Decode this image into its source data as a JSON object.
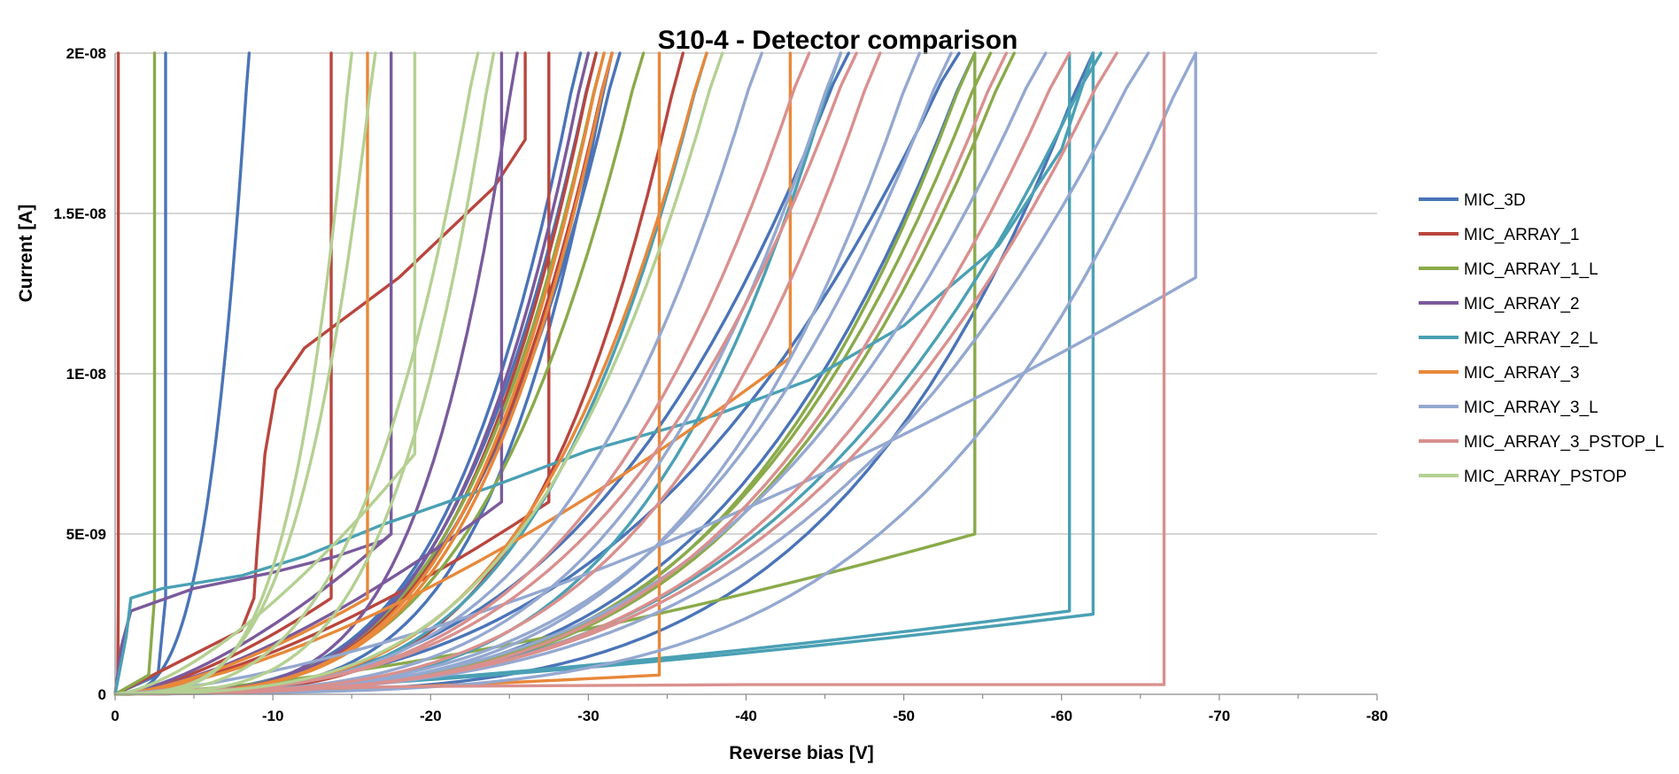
{
  "chart_data": {
    "type": "line",
    "title": "S10-4 - Detector comparison",
    "xlabel": "Reverse bias [V]",
    "ylabel": "Current [A]",
    "xlim": [
      0,
      -80
    ],
    "ylim": [
      0,
      2e-08
    ],
    "x_ticks": [
      "0",
      "-10",
      "-20",
      "-30",
      "-40",
      "-50",
      "-60",
      "-70",
      "-80"
    ],
    "y_ticks": [
      "0",
      "5E-09",
      "1E-08",
      "1.5E-08",
      "2E-08"
    ],
    "grid": "horizontal",
    "legend_position": "right",
    "series": [
      {
        "name": "MIC_3D",
        "color": "#4a74b8",
        "curves": [
          {
            "style": "wall",
            "v": 3.2
          },
          {
            "style": "knee",
            "v": 8.5,
            "k": 1.7
          },
          {
            "style": "knee",
            "v": 29.5,
            "k": 2.0
          },
          {
            "style": "knee",
            "v": 30.5,
            "k": 1.9
          },
          {
            "style": "knee",
            "v": 31.5,
            "k": 2.3
          },
          {
            "style": "knee",
            "v": 32.0,
            "k": 1.8
          },
          {
            "style": "knee",
            "v": 54.5,
            "k": 1.9
          },
          {
            "style": "knee",
            "v": 62.0,
            "k": 2.2
          },
          {
            "style": "knee",
            "v": 46.5,
            "k": 1.5
          },
          {
            "style": "knee",
            "v": 53.5,
            "k": 1.4
          }
        ]
      },
      {
        "name": "MIC_ARRAY_1",
        "color": "#b9463e",
        "curves": [
          {
            "style": "wall",
            "v": 0.2
          },
          {
            "style": "step",
            "v": 13.7,
            "y": 3e-09
          },
          {
            "style": "step",
            "v": 27.5,
            "y": 6e-09
          },
          {
            "style": "points",
            "pts": [
              [
                0,
                0
              ],
              [
                4,
                1e-09
              ],
              [
                8,
                2e-09
              ],
              [
                8.8,
                3e-09
              ],
              [
                9,
                4.5e-09
              ],
              [
                9.5,
                7.5e-09
              ],
              [
                10.2,
                9.5e-09
              ],
              [
                12,
                1.08e-08
              ],
              [
                18,
                1.3e-08
              ],
              [
                24,
                1.58e-08
              ],
              [
                26,
                1.73e-08
              ],
              [
                26,
                2e-08
              ]
            ]
          },
          {
            "style": "knee",
            "v": 36,
            "k": 2.2
          },
          {
            "style": "knee",
            "v": 30.5,
            "k": 2.0
          },
          {
            "style": "knee",
            "v": 31.5,
            "k": 1.9
          }
        ]
      },
      {
        "name": "MIC_ARRAY_1_L",
        "color": "#8aaa4a",
        "curves": [
          {
            "style": "wall",
            "v": 2.5
          },
          {
            "style": "knee",
            "v": 33.5,
            "k": 1.8
          },
          {
            "style": "knee",
            "v": 54.5,
            "k": 2.0
          },
          {
            "style": "knee",
            "v": 55.5,
            "k": 1.9
          },
          {
            "style": "knee",
            "v": 57.0,
            "k": 1.9
          },
          {
            "style": "knee",
            "v": 31.0,
            "k": 1.9
          },
          {
            "style": "step",
            "v": 54.5,
            "y": 5e-09
          }
        ]
      },
      {
        "name": "MIC_ARRAY_2",
        "color": "#7a5a9c",
        "curves": [
          {
            "style": "step",
            "v": 17.5,
            "y": 5e-09
          },
          {
            "style": "step",
            "v": 24.5,
            "y": 6e-09
          },
          {
            "style": "knee",
            "v": 25.5,
            "k": 2.4
          },
          {
            "style": "points",
            "pts": [
              [
                0,
                0
              ],
              [
                0.4,
                1.5e-09
              ],
              [
                1,
                2.6e-09
              ],
              [
                5,
                3.3e-09
              ],
              [
                10,
                3.8e-09
              ],
              [
                14,
                4.3e-09
              ],
              [
                17,
                4.8e-09
              ],
              [
                17.5,
                5e-09
              ]
            ]
          },
          {
            "style": "knee",
            "v": 30.0,
            "k": 2.0
          }
        ]
      },
      {
        "name": "MIC_ARRAY_2_L",
        "color": "#4aa0b4",
        "curves": [
          {
            "style": "points",
            "pts": [
              [
                0,
                0
              ],
              [
                0.7,
                1.8e-09
              ],
              [
                1,
                3e-09
              ],
              [
                3,
                3.3e-09
              ],
              [
                8,
                3.7e-09
              ],
              [
                12,
                4.3e-09
              ],
              [
                17,
                5.3e-09
              ],
              [
                24,
                6.5e-09
              ],
              [
                30,
                7.6e-09
              ],
              [
                38,
                8.7e-09
              ],
              [
                44,
                9.8e-09
              ],
              [
                50,
                1.15e-08
              ],
              [
                56,
                1.4e-08
              ],
              [
                60,
                1.7e-08
              ],
              [
                62,
                2e-08
              ]
            ]
          },
          {
            "style": "knee",
            "v": 37.5,
            "k": 2.0
          },
          {
            "style": "knee",
            "v": 46.0,
            "k": 2.1
          },
          {
            "style": "step",
            "v": 60.5,
            "y": 2.6e-09
          },
          {
            "style": "step",
            "v": 62.0,
            "y": 2.5e-09
          },
          {
            "style": "knee",
            "v": 62.5,
            "k": 1.7
          }
        ]
      },
      {
        "name": "MIC_ARRAY_3",
        "color": "#e8883a",
        "curves": [
          {
            "style": "step",
            "v": 16.0,
            "y": 3e-09
          },
          {
            "style": "step",
            "v": 34.5,
            "y": 6e-10
          },
          {
            "style": "step",
            "v": 42.8,
            "y": 1.05e-08
          },
          {
            "style": "knee",
            "v": 31.0,
            "k": 2.0
          },
          {
            "style": "knee",
            "v": 31.5,
            "k": 2.0
          },
          {
            "style": "knee",
            "v": 37.5,
            "k": 1.9
          }
        ]
      },
      {
        "name": "MIC_ARRAY_3_L",
        "color": "#94a8d0",
        "curves": [
          {
            "style": "knee",
            "v": 68.5,
            "k": 2.2
          },
          {
            "style": "knee",
            "v": 46.0,
            "k": 1.9
          },
          {
            "style": "knee",
            "v": 51.0,
            "k": 2.0
          },
          {
            "style": "knee",
            "v": 53.0,
            "k": 1.8
          },
          {
            "style": "knee",
            "v": 59.0,
            "k": 1.7
          },
          {
            "style": "knee",
            "v": 65.5,
            "k": 1.7
          },
          {
            "style": "step",
            "v": 68.5,
            "y": 1.3e-08
          },
          {
            "style": "knee",
            "v": 41.0,
            "k": 1.8
          }
        ]
      },
      {
        "name": "MIC_ARRAY_3_PSTOP_L",
        "color": "#d9908e",
        "curves": [
          {
            "style": "points",
            "pts": [
              [
                0,
                0
              ],
              [
                5,
                1.5e-10
              ],
              [
                20,
                2.5e-10
              ],
              [
                40,
                3e-10
              ],
              [
                60,
                3e-10
              ],
              [
                66.5,
                3e-10
              ],
              [
                66.5,
                2e-08
              ]
            ]
          },
          {
            "style": "knee",
            "v": 44.0,
            "k": 1.7
          },
          {
            "style": "knee",
            "v": 48.5,
            "k": 1.9
          },
          {
            "style": "knee",
            "v": 56.5,
            "k": 1.9
          },
          {
            "style": "knee",
            "v": 60.5,
            "k": 1.8
          },
          {
            "style": "knee",
            "v": 63.5,
            "k": 1.7
          },
          {
            "style": "knee",
            "v": 47.0,
            "k": 1.6
          }
        ]
      },
      {
        "name": "MIC_ARRAY_PSTOP",
        "color": "#b4d092",
        "curves": [
          {
            "style": "step",
            "v": 19.0,
            "y": 7.5e-09
          },
          {
            "style": "knee",
            "v": 15.0,
            "k": 2.2
          },
          {
            "style": "knee",
            "v": 16.5,
            "k": 1.9
          },
          {
            "style": "knee",
            "v": 24.0,
            "k": 2.1
          },
          {
            "style": "knee",
            "v": 23.0,
            "k": 1.7
          },
          {
            "style": "knee",
            "v": 38.5,
            "k": 1.8
          }
        ]
      }
    ]
  }
}
